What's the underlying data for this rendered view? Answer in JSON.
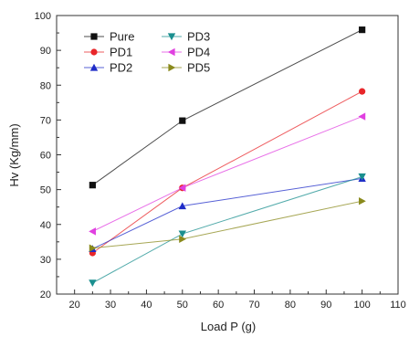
{
  "chart_data": {
    "type": "line",
    "title": "",
    "xlabel": "Load P (g)",
    "ylabel": "Hv (Kg/mm)",
    "xlim": [
      15,
      110
    ],
    "ylim": [
      20,
      100
    ],
    "x_ticks": [
      20,
      30,
      40,
      50,
      60,
      70,
      80,
      90,
      100,
      110
    ],
    "y_ticks": [
      20,
      30,
      40,
      50,
      60,
      70,
      80,
      90,
      100
    ],
    "x": [
      25,
      50,
      100
    ],
    "grid": false,
    "legend_position": "top-left",
    "series": [
      {
        "name": "Pure",
        "values": [
          51.3,
          69.8,
          95.9
        ],
        "color": "#111111",
        "marker": "square"
      },
      {
        "name": "PD1",
        "values": [
          31.8,
          50.5,
          78.2
        ],
        "color": "#e8262a",
        "marker": "circle"
      },
      {
        "name": "PD2",
        "values": [
          33.0,
          45.3,
          53.2
        ],
        "color": "#1f2cc8",
        "marker": "triangle-up"
      },
      {
        "name": "PD3",
        "values": [
          23.2,
          37.3,
          53.7
        ],
        "color": "#1a8f8f",
        "marker": "triangle-down"
      },
      {
        "name": "PD4",
        "values": [
          38.0,
          50.5,
          71.0
        ],
        "color": "#e040e0",
        "marker": "triangle-left"
      },
      {
        "name": "PD5",
        "values": [
          33.2,
          35.8,
          46.7
        ],
        "color": "#8a8a1c",
        "marker": "triangle-right"
      }
    ]
  }
}
